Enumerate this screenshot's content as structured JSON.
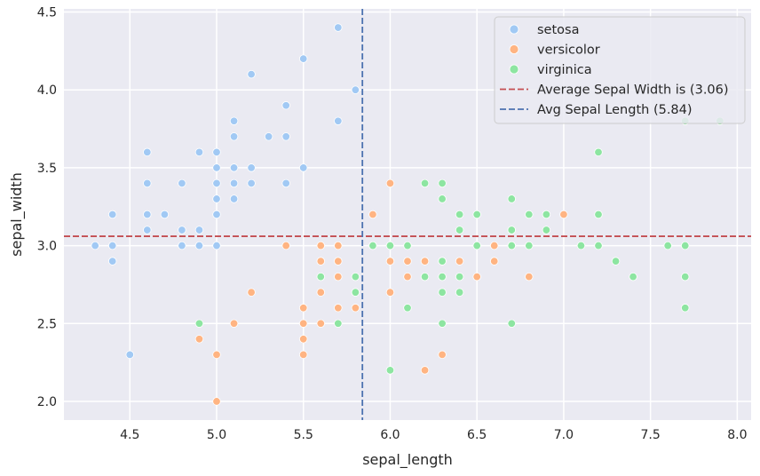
{
  "chart_data": {
    "type": "scatter",
    "title": "",
    "xlabel": "sepal_length",
    "ylabel": "sepal_width",
    "xlim": [
      4.12,
      8.08
    ],
    "ylim": [
      1.88,
      4.52
    ],
    "xticks": [
      4.5,
      5.0,
      5.5,
      6.0,
      6.5,
      7.0,
      7.5,
      8.0
    ],
    "xtick_labels": [
      "4.5",
      "5.0",
      "5.5",
      "6.0",
      "6.5",
      "7.0",
      "7.5",
      "8.0"
    ],
    "yticks": [
      2.0,
      2.5,
      3.0,
      3.5,
      4.0,
      4.5
    ],
    "ytick_labels": [
      "2.0",
      "2.5",
      "3.0",
      "3.5",
      "4.0",
      "4.5"
    ],
    "grid": true,
    "background": "#eaeaf2",
    "legend_position": "top-right",
    "series": [
      {
        "name": "setosa",
        "color": "#a1c9f4",
        "points": [
          [
            4.3,
            3.0
          ],
          [
            4.4,
            3.0
          ],
          [
            4.4,
            3.2
          ],
          [
            4.4,
            2.9
          ],
          [
            4.5,
            2.3
          ],
          [
            4.6,
            3.6
          ],
          [
            4.6,
            3.4
          ],
          [
            4.6,
            3.2
          ],
          [
            4.6,
            3.1
          ],
          [
            4.7,
            3.2
          ],
          [
            4.8,
            3.4
          ],
          [
            4.8,
            3.1
          ],
          [
            4.8,
            3.0
          ],
          [
            4.9,
            3.6
          ],
          [
            4.9,
            3.1
          ],
          [
            4.9,
            3.0
          ],
          [
            5.0,
            3.6
          ],
          [
            5.0,
            3.5
          ],
          [
            5.0,
            3.4
          ],
          [
            5.0,
            3.3
          ],
          [
            5.0,
            3.2
          ],
          [
            5.0,
            3.0
          ],
          [
            5.1,
            3.8
          ],
          [
            5.1,
            3.7
          ],
          [
            5.1,
            3.5
          ],
          [
            5.1,
            3.4
          ],
          [
            5.1,
            3.3
          ],
          [
            5.2,
            4.1
          ],
          [
            5.2,
            3.5
          ],
          [
            5.2,
            3.4
          ],
          [
            5.3,
            3.7
          ],
          [
            5.4,
            3.9
          ],
          [
            5.4,
            3.7
          ],
          [
            5.4,
            3.4
          ],
          [
            5.5,
            4.2
          ],
          [
            5.5,
            3.5
          ],
          [
            5.7,
            4.4
          ],
          [
            5.7,
            3.8
          ],
          [
            5.8,
            4.0
          ]
        ]
      },
      {
        "name": "versicolor",
        "color": "#ffb482",
        "points": [
          [
            4.9,
            2.4
          ],
          [
            5.0,
            2.3
          ],
          [
            5.0,
            2.0
          ],
          [
            5.1,
            2.5
          ],
          [
            5.2,
            2.7
          ],
          [
            5.4,
            3.0
          ],
          [
            5.5,
            2.6
          ],
          [
            5.5,
            2.5
          ],
          [
            5.5,
            2.4
          ],
          [
            5.5,
            2.3
          ],
          [
            5.6,
            3.0
          ],
          [
            5.6,
            2.9
          ],
          [
            5.6,
            2.7
          ],
          [
            5.6,
            2.5
          ],
          [
            5.7,
            3.0
          ],
          [
            5.7,
            2.9
          ],
          [
            5.7,
            2.8
          ],
          [
            5.7,
            2.6
          ],
          [
            5.8,
            2.7
          ],
          [
            5.8,
            2.6
          ],
          [
            5.9,
            3.2
          ],
          [
            5.9,
            3.0
          ],
          [
            6.0,
            3.4
          ],
          [
            6.0,
            2.9
          ],
          [
            6.0,
            2.7
          ],
          [
            6.1,
            2.9
          ],
          [
            6.1,
            2.8
          ],
          [
            6.2,
            2.9
          ],
          [
            6.2,
            2.2
          ],
          [
            6.3,
            2.9
          ],
          [
            6.3,
            2.3
          ],
          [
            6.4,
            2.9
          ],
          [
            6.5,
            2.8
          ],
          [
            6.6,
            3.0
          ],
          [
            6.6,
            2.9
          ],
          [
            6.7,
            3.1
          ],
          [
            6.7,
            3.0
          ],
          [
            6.8,
            2.8
          ],
          [
            7.0,
            3.2
          ]
        ]
      },
      {
        "name": "virginica",
        "color": "#8de5a1",
        "points": [
          [
            4.9,
            2.5
          ],
          [
            5.6,
            2.8
          ],
          [
            5.7,
            2.5
          ],
          [
            5.8,
            2.8
          ],
          [
            5.8,
            2.7
          ],
          [
            5.9,
            3.0
          ],
          [
            6.0,
            3.0
          ],
          [
            6.0,
            2.2
          ],
          [
            6.1,
            3.0
          ],
          [
            6.1,
            2.6
          ],
          [
            6.2,
            3.4
          ],
          [
            6.2,
            2.8
          ],
          [
            6.3,
            3.4
          ],
          [
            6.3,
            3.3
          ],
          [
            6.3,
            2.9
          ],
          [
            6.3,
            2.8
          ],
          [
            6.3,
            2.7
          ],
          [
            6.3,
            2.5
          ],
          [
            6.4,
            3.2
          ],
          [
            6.4,
            3.1
          ],
          [
            6.4,
            2.8
          ],
          [
            6.4,
            2.7
          ],
          [
            6.5,
            3.2
          ],
          [
            6.5,
            3.0
          ],
          [
            6.7,
            3.3
          ],
          [
            6.7,
            3.1
          ],
          [
            6.7,
            3.0
          ],
          [
            6.7,
            2.5
          ],
          [
            6.8,
            3.2
          ],
          [
            6.8,
            3.0
          ],
          [
            6.9,
            3.2
          ],
          [
            6.9,
            3.1
          ],
          [
            7.1,
            3.0
          ],
          [
            7.2,
            3.6
          ],
          [
            7.2,
            3.2
          ],
          [
            7.2,
            3.0
          ],
          [
            7.3,
            2.9
          ],
          [
            7.4,
            2.8
          ],
          [
            7.6,
            3.0
          ],
          [
            7.7,
            3.8
          ],
          [
            7.7,
            3.0
          ],
          [
            7.7,
            2.8
          ],
          [
            7.7,
            2.6
          ],
          [
            7.9,
            3.8
          ]
        ]
      }
    ],
    "reference_lines": [
      {
        "orientation": "horizontal",
        "value": 3.06,
        "color": "#c44e52",
        "label": "Average Sepal Width is (3.06)"
      },
      {
        "orientation": "vertical",
        "value": 5.84,
        "color": "#4c72b0",
        "label": "Avg Sepal Length (5.84)"
      }
    ]
  }
}
